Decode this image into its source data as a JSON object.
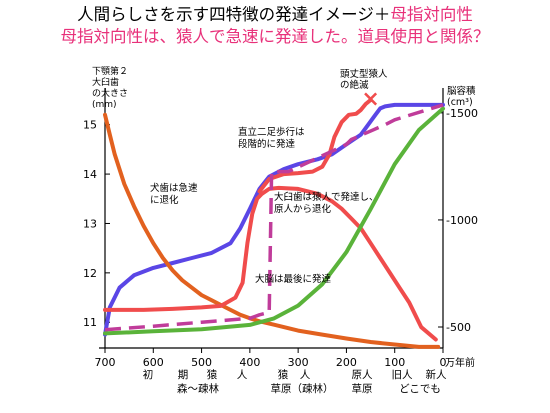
{
  "title": {
    "line1_main": "人間らしさを示す四特徴の発達イメージ＋",
    "line1_accent": "母指対向性",
    "line2": "母指対向性は、猿人で急速に発達した。道具使用と関係？"
  },
  "axes": {
    "left_label_lines": [
      "下顎第２",
      "大臼歯",
      "の大きさ",
      "(mm)"
    ],
    "right_label_lines": [
      "脳容積",
      "(cm³)"
    ],
    "x_unit": "万年前",
    "left_ticks": [
      "11",
      "12",
      "13",
      "14",
      "15"
    ],
    "right_ticks": [
      "500",
      "1000",
      "1500"
    ],
    "x_ticks": [
      "700",
      "600",
      "500",
      "400",
      "300",
      "200",
      "100",
      "0"
    ]
  },
  "annotations": {
    "extinction": [
      "頭丈型猿人",
      "の絶滅"
    ],
    "bipedal": [
      "直立二足歩行は",
      "段階的に発達"
    ],
    "canine": [
      "犬歯は急速",
      "に退化"
    ],
    "molar": [
      "大臼歯は猿人で発達し、",
      "原人から退化"
    ],
    "brain": "大脳は最後に発達"
  },
  "stages": {
    "row1": [
      "初",
      "期",
      "猿",
      "人",
      "猿",
      "人",
      "原人",
      "旧人",
      "新人"
    ],
    "row2": [
      "森〜疎林",
      "草原（疎林）",
      "草原",
      "どこでも"
    ]
  },
  "colors": {
    "title_accent": "#e8317a",
    "bipedalism": "#5a46e6",
    "canine": "#e2611f",
    "molar": "#f04c4c",
    "brain": "#5ab33a",
    "thumb": "#c03c9a",
    "extinction_mark": "#f04c4c"
  },
  "chart_data": {
    "type": "line",
    "x": {
      "unit": "万年前",
      "reversed": true,
      "range": [
        700,
        0
      ]
    },
    "y_left": {
      "label": "下顎第２大臼歯の大きさ(mm)",
      "range": [
        10.6,
        15.5
      ]
    },
    "y_right": {
      "label": "脳容積(cm³)",
      "range": [
        430,
        1560
      ]
    },
    "series": [
      {
        "name": "直立二足歩行は段階的に発達",
        "axis": "left",
        "color": "#5a46e6",
        "x": [
          700,
          690,
          670,
          640,
          600,
          560,
          520,
          480,
          440,
          420,
          400,
          390,
          380,
          360,
          330,
          300,
          260,
          230,
          200,
          170,
          155,
          140,
          130,
          120,
          100,
          50,
          0
        ],
        "y": [
          10.75,
          11.3,
          11.7,
          11.95,
          12.1,
          12.2,
          12.3,
          12.4,
          12.6,
          12.9,
          13.3,
          13.5,
          13.7,
          13.95,
          14.1,
          14.2,
          14.3,
          14.4,
          14.6,
          14.8,
          15.0,
          15.2,
          15.33,
          15.37,
          15.4,
          15.4,
          15.4
        ]
      },
      {
        "name": "犬歯は急速に退化",
        "axis": "left",
        "color": "#e2611f",
        "x": [
          700,
          690,
          680,
          660,
          640,
          620,
          600,
          580,
          560,
          540,
          520,
          500,
          480,
          460,
          440,
          420,
          400,
          380,
          350,
          300,
          250,
          200,
          150,
          100,
          50,
          10
        ],
        "y": [
          15.2,
          14.8,
          14.4,
          13.8,
          13.35,
          12.95,
          12.6,
          12.3,
          12.05,
          11.85,
          11.7,
          11.55,
          11.45,
          11.35,
          11.25,
          11.15,
          11.08,
          11.02,
          10.95,
          10.83,
          10.75,
          10.67,
          10.6,
          10.55,
          10.5,
          10.5
        ]
      },
      {
        "name": "大臼歯は猿人で発達し、原人から退化",
        "axis": "left",
        "color": "#f04c4c",
        "x": [
          700,
          620,
          560,
          500,
          460,
          430,
          415,
          405,
          395,
          385,
          375,
          360,
          340,
          300,
          260,
          230,
          210,
          190,
          170,
          150,
          130,
          110,
          90,
          70,
          55,
          45,
          15
        ],
        "y": [
          11.25,
          11.25,
          11.27,
          11.3,
          11.33,
          11.5,
          11.8,
          12.6,
          13.2,
          13.5,
          13.6,
          13.7,
          13.72,
          13.7,
          13.6,
          13.45,
          13.3,
          13.1,
          12.9,
          12.6,
          12.3,
          12.0,
          11.7,
          11.4,
          11.1,
          10.9,
          10.65
        ]
      },
      {
        "name": "頭丈型猿人",
        "axis": "left",
        "color": "#f04c4c",
        "x": [
          380,
          360,
          330,
          300,
          270,
          250,
          235,
          225,
          210,
          195,
          180,
          170,
          160,
          150
        ],
        "y": [
          13.65,
          13.9,
          14.0,
          14.02,
          14.05,
          14.15,
          14.4,
          14.75,
          15.05,
          15.2,
          15.22,
          15.3,
          15.42,
          15.5
        ]
      },
      {
        "name": "大脳は最後に発達",
        "axis": "right",
        "color": "#5ab33a",
        "x": [
          700,
          600,
          500,
          400,
          350,
          300,
          250,
          200,
          150,
          100,
          50,
          0
        ],
        "y": [
          470,
          480,
          490,
          510,
          540,
          600,
          700,
          850,
          1050,
          1260,
          1420,
          1520
        ]
      },
      {
        "name": "母指対向性",
        "axis": "left",
        "color": "#c03c9a",
        "dashed": true,
        "x": [
          700,
          600,
          500,
          400,
          380,
          360,
          355,
          320,
          200,
          190,
          120,
          100,
          0
        ],
        "y": [
          10.85,
          10.92,
          11.0,
          11.08,
          11.15,
          11.2,
          14.05,
          14.05,
          14.6,
          14.7,
          15.0,
          15.1,
          15.4
        ]
      }
    ],
    "extinction_marker": {
      "x": 150,
      "y": 15.5,
      "axis": "left",
      "symbol": "×"
    }
  }
}
